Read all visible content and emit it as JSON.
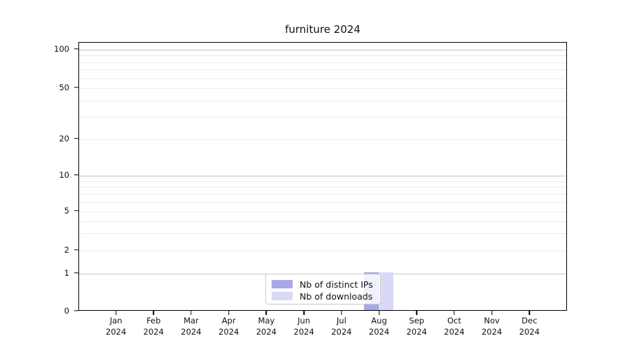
{
  "chart_data": {
    "type": "bar",
    "title": "furniture 2024",
    "categories": [
      "Jan",
      "Feb",
      "Mar",
      "Apr",
      "May",
      "Jun",
      "Jul",
      "Aug",
      "Sep",
      "Oct",
      "Nov",
      "Dec"
    ],
    "category_year": "2024",
    "series": [
      {
        "name": "Nb of distinct IPs",
        "color": "#a8a8e9",
        "values": [
          0,
          0,
          0,
          0,
          0,
          0,
          0,
          1,
          0,
          0,
          0,
          0
        ]
      },
      {
        "name": "Nb of downloads",
        "color": "#d9d9f7",
        "values": [
          0,
          0,
          0,
          0,
          0,
          0,
          0,
          1,
          0,
          0,
          0,
          0
        ]
      }
    ],
    "y_axis": {
      "scale": "symlog-like",
      "tick_labels": [
        100,
        50,
        20,
        10,
        5,
        2,
        1,
        0
      ],
      "major_gridline_values": [
        1,
        10,
        100
      ],
      "minor_gridline_values": [
        2,
        3,
        4,
        5,
        6,
        7,
        8,
        9,
        20,
        30,
        40,
        50,
        60,
        70,
        80,
        90
      ],
      "range": [
        0,
        110
      ]
    },
    "x_axis": {
      "tick_count": 12
    },
    "legend": {
      "position": "bottom-center"
    },
    "grid": true
  }
}
